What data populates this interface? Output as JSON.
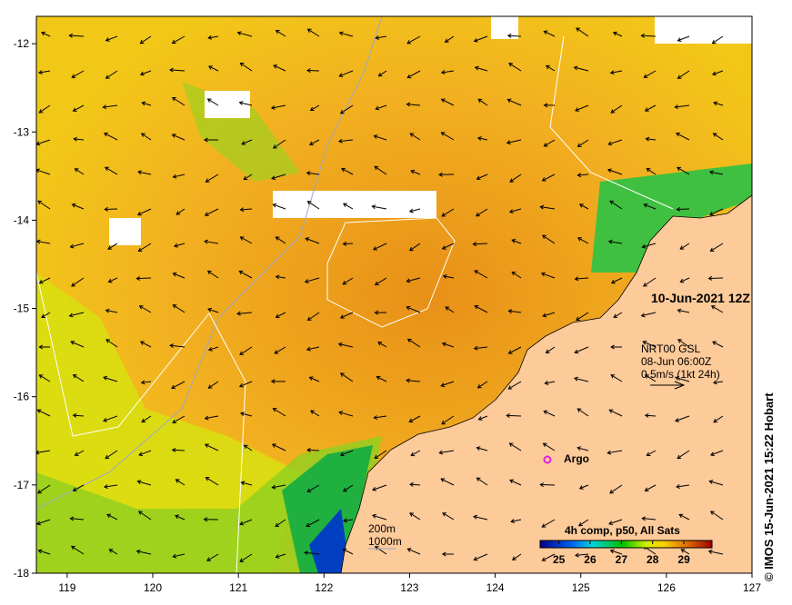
{
  "map": {
    "lon_ticks": [
      "119",
      "120",
      "121",
      "122",
      "123",
      "124",
      "125",
      "126",
      "127"
    ],
    "lat_ticks": [
      "-12",
      "-13",
      "-14",
      "-15",
      "-16",
      "-17",
      "-18"
    ],
    "lon_range": [
      118.64,
      127
    ],
    "lat_range": [
      -18,
      -11.69
    ],
    "date_label": "10-Jun-2021 12Z",
    "current_source": "NRT00 GSL",
    "current_time": "08-Jun 06:00Z",
    "current_scale": "0.5m/s (1kt 24h)",
    "argo_label": "Argo",
    "isobath_200": "200m",
    "isobath_1000": "1000m",
    "credit": "© IMOS 15-Jun-2021 15:22 Hobart"
  },
  "colorbar": {
    "title": "4h comp, p50, All Sats",
    "ticks": [
      "25",
      "26",
      "27",
      "28",
      "29"
    ],
    "range": [
      24.4,
      29.9
    ]
  },
  "colors": {
    "land": "#fdca99",
    "sst_warm": "#f0a020",
    "sst_mid": "#f5c818",
    "isobath_200": "#9aa8c8"
  }
}
